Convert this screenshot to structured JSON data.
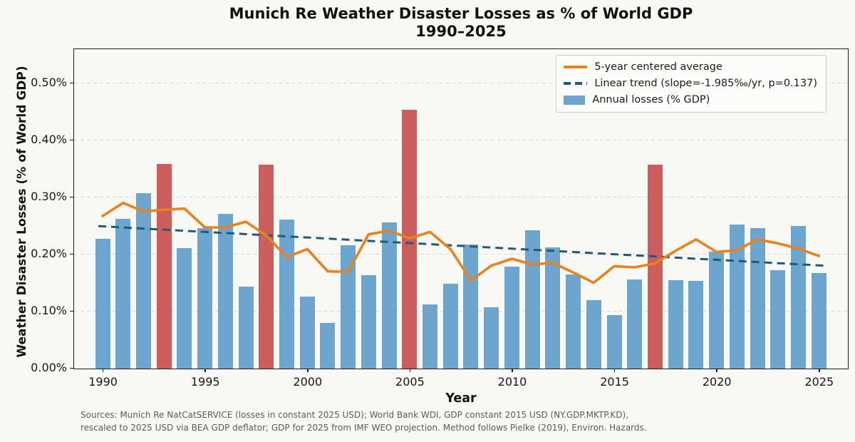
{
  "title": {
    "line1": "Munich Re Weather Disaster Losses as % of World GDP",
    "line2": "1990–2025"
  },
  "axes": {
    "x_label": "Year",
    "y_label": "Weather Disaster Losses (% of World GDP)",
    "y_ticks": [
      {
        "value": 0.0,
        "label": "0.00%"
      },
      {
        "value": 0.1,
        "label": "0.10%"
      },
      {
        "value": 0.2,
        "label": "0.20%"
      },
      {
        "value": 0.3,
        "label": "0.30%"
      },
      {
        "value": 0.4,
        "label": "0.40%"
      },
      {
        "value": 0.5,
        "label": "0.50%"
      }
    ],
    "x_ticks": [
      1990,
      1995,
      2000,
      2005,
      2010,
      2015,
      2020,
      2025
    ]
  },
  "legend": {
    "avg_label": "5-year centered average",
    "trend_label": "Linear trend (slope=-1.985‰/yr, p=0.137)",
    "bars_label": "Annual losses (% GDP)"
  },
  "footnote": {
    "line1": "Sources: Munich Re NatCatSERVICE (losses in constant 2025 USD); World Bank WDI, GDP constant 2015 USD (NY.GDP.MKTP.KD),",
    "line2": "rescaled to 2025 USD via BEA GDP deflator; GDP for 2025 from IMF WEO projection. Method follows Pielke (2019), Environ. Hazards."
  },
  "colors": {
    "background": "#F8F8F4",
    "bar": "#6DA5CE",
    "bar_highlight": "#CD5C5C",
    "avg_line": "#E8821D",
    "trend_line": "#1F5A78",
    "grid": "#D9D9D4"
  },
  "chart_data": {
    "type": "bar",
    "title": "Munich Re Weather Disaster Losses as % of World GDP 1990–2025",
    "xlabel": "Year",
    "ylabel": "Weather Disaster Losses (% of World GDP)",
    "ylim": [
      0,
      0.5575
    ],
    "grid": "horizontal-dashed",
    "legend_position": "upper right",
    "years": [
      1990,
      1991,
      1992,
      1993,
      1994,
      1995,
      1996,
      1997,
      1998,
      1999,
      2000,
      2001,
      2002,
      2003,
      2004,
      2005,
      2006,
      2007,
      2008,
      2009,
      2010,
      2011,
      2012,
      2013,
      2014,
      2015,
      2016,
      2017,
      2018,
      2019,
      2020,
      2021,
      2022,
      2023,
      2024,
      2025
    ],
    "annual_losses_pct_gdp": [
      0.228,
      0.263,
      0.307,
      0.359,
      0.211,
      0.246,
      0.271,
      0.144,
      0.357,
      0.261,
      0.126,
      0.08,
      0.216,
      0.164,
      0.256,
      0.454,
      0.112,
      0.149,
      0.217,
      0.107,
      0.179,
      0.242,
      0.212,
      0.165,
      0.12,
      0.094,
      0.156,
      0.357,
      0.155,
      0.154,
      0.205,
      0.253,
      0.246,
      0.172,
      0.25,
      0.167
    ],
    "highlight_years": [
      1993,
      1998,
      2005,
      2017
    ],
    "five_year_avg": [
      0.266,
      0.289,
      0.274,
      0.277,
      0.279,
      0.246,
      0.246,
      0.256,
      0.232,
      0.194,
      0.208,
      0.169,
      0.168,
      0.234,
      0.24,
      0.227,
      0.238,
      0.208,
      0.153,
      0.179,
      0.191,
      0.181,
      0.184,
      0.167,
      0.149,
      0.178,
      0.176,
      0.183,
      0.205,
      0.225,
      0.203,
      0.206,
      0.225,
      0.218,
      0.209,
      0.196
    ],
    "trend": {
      "slope_per_mille_per_yr": -1.985,
      "p_value": 0.137,
      "value_at_1990": 0.2483,
      "value_at_2025": 0.1788
    }
  }
}
